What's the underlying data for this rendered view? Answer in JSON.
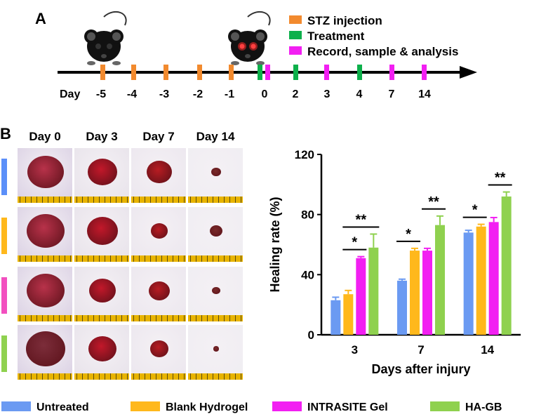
{
  "panel_a": {
    "label": "A",
    "legend": [
      {
        "label": "STZ injection",
        "color": "#f28a2e"
      },
      {
        "label": "Treatment",
        "color": "#0db04b"
      },
      {
        "label": "Record, sample & analysis",
        "color": "#f21ff2"
      }
    ],
    "day_prefix": "Day",
    "days": [
      "-5",
      "-4",
      "-3",
      "-2",
      "-1",
      "0",
      "2",
      "3",
      "4",
      "7",
      "14"
    ],
    "mouse_icons": [
      "mouse-normal-icon",
      "mouse-diabetic-icon"
    ]
  },
  "panel_b": {
    "label": "B",
    "column_headers": [
      "Day 0",
      "Day 3",
      "Day 7",
      "Day 14"
    ],
    "row_colors": [
      "#5b8ff9",
      "#ffb81c",
      "#f24fbf",
      "#8fd14f"
    ]
  },
  "chart_data": {
    "type": "bar",
    "title": "",
    "xlabel": "Days after injury",
    "ylabel": "Healing rate (%)",
    "ylim": [
      0,
      120
    ],
    "yticks": [
      "0",
      "40",
      "80",
      "120"
    ],
    "categories": [
      "3",
      "7",
      "14"
    ],
    "series": [
      {
        "name": "Untreated",
        "color": "#6b9af2",
        "values": [
          23,
          36,
          68
        ],
        "errors": [
          2,
          1,
          1.5
        ]
      },
      {
        "name": "Blank Hydrogel",
        "color": "#ffb81c",
        "values": [
          27,
          56,
          72
        ],
        "errors": [
          2.5,
          1.5,
          1.5
        ]
      },
      {
        "name": "INTRASITE Gel",
        "color": "#f21ff2",
        "values": [
          51,
          56,
          75
        ],
        "errors": [
          1,
          1.5,
          3
        ]
      },
      {
        "name": "HA-GB",
        "color": "#8fd14f",
        "values": [
          58,
          73,
          92
        ],
        "errors": [
          9,
          6,
          3
        ]
      }
    ],
    "significance": [
      {
        "category": "3",
        "from": 2,
        "to": 3,
        "label": "*"
      },
      {
        "category": "3",
        "from": 2,
        "to": 4,
        "label": "**"
      },
      {
        "category": "7",
        "from": 1,
        "to": 2,
        "label": "*"
      },
      {
        "category": "7",
        "from": 3,
        "to": 4,
        "label": "**"
      },
      {
        "category": "14",
        "from": 1,
        "to": 2,
        "label": "*"
      },
      {
        "category": "14",
        "from": 3,
        "to": 4,
        "label": "**"
      }
    ]
  },
  "legend": [
    {
      "label": "Untreated",
      "color": "#6b9af2"
    },
    {
      "label": "Blank Hydrogel",
      "color": "#ffb81c"
    },
    {
      "label": "INTRASITE Gel",
      "color": "#f21ff2"
    },
    {
      "label": "HA-GB",
      "color": "#8fd14f"
    }
  ]
}
